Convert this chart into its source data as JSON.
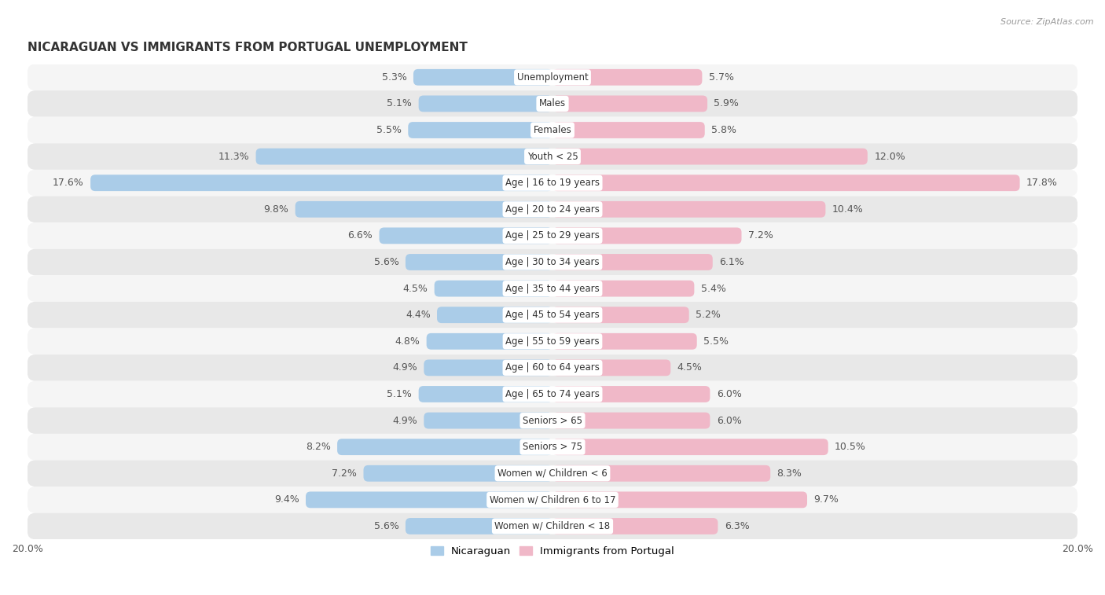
{
  "title": "NICARAGUAN VS IMMIGRANTS FROM PORTUGAL UNEMPLOYMENT",
  "source": "Source: ZipAtlas.com",
  "categories": [
    "Unemployment",
    "Males",
    "Females",
    "Youth < 25",
    "Age | 16 to 19 years",
    "Age | 20 to 24 years",
    "Age | 25 to 29 years",
    "Age | 30 to 34 years",
    "Age | 35 to 44 years",
    "Age | 45 to 54 years",
    "Age | 55 to 59 years",
    "Age | 60 to 64 years",
    "Age | 65 to 74 years",
    "Seniors > 65",
    "Seniors > 75",
    "Women w/ Children < 6",
    "Women w/ Children 6 to 17",
    "Women w/ Children < 18"
  ],
  "nicaraguan": [
    5.3,
    5.1,
    5.5,
    11.3,
    17.6,
    9.8,
    6.6,
    5.6,
    4.5,
    4.4,
    4.8,
    4.9,
    5.1,
    4.9,
    8.2,
    7.2,
    9.4,
    5.6
  ],
  "portugal": [
    5.7,
    5.9,
    5.8,
    12.0,
    17.8,
    10.4,
    7.2,
    6.1,
    5.4,
    5.2,
    5.5,
    4.5,
    6.0,
    6.0,
    10.5,
    8.3,
    9.7,
    6.3
  ],
  "nicaraguan_color": "#aacce8",
  "portugal_color": "#f0b8c8",
  "row_bg_even": "#f5f5f5",
  "row_bg_odd": "#e8e8e8",
  "bg_color": "#ffffff",
  "xlim": 20.0,
  "bar_height": 0.62,
  "legend_nicaraguan": "Nicaraguan",
  "legend_portugal": "Immigrants from Portugal",
  "label_fontsize": 9,
  "title_fontsize": 11,
  "source_fontsize": 8,
  "cat_fontsize": 8.5
}
